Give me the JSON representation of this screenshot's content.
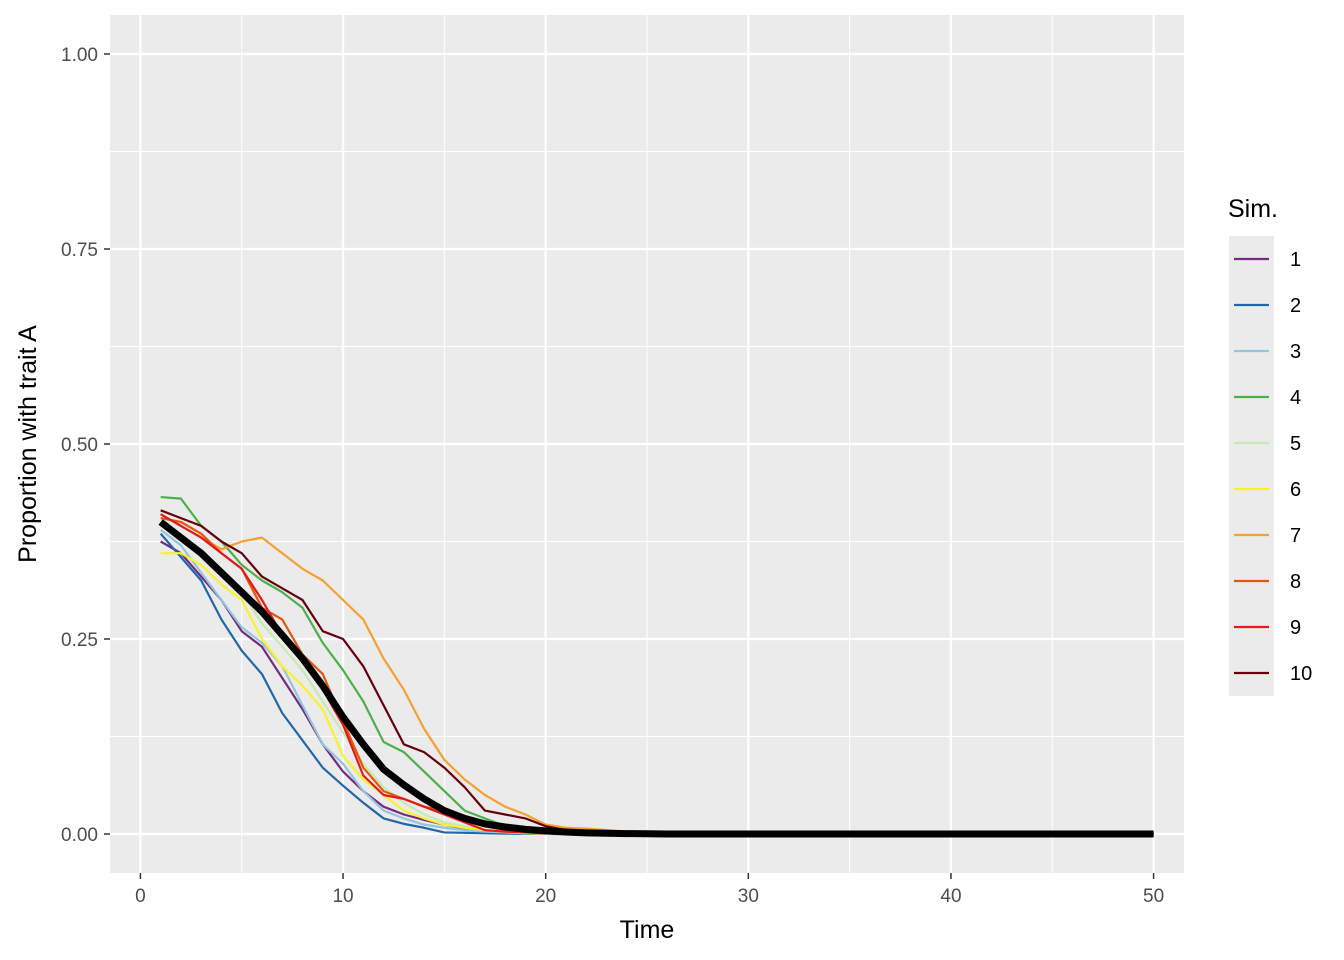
{
  "chart_data": {
    "type": "line",
    "xlabel": "Time",
    "ylabel": "Proportion with trait A",
    "xlim": [
      -1.5,
      51.5
    ],
    "ylim": [
      -0.05,
      1.05
    ],
    "x_ticks": [
      0,
      10,
      20,
      30,
      40,
      50
    ],
    "x_tick_labels": [
      "0",
      "10",
      "20",
      "30",
      "40",
      "50"
    ],
    "y_ticks": [
      0,
      0.25,
      0.5,
      0.75,
      1.0
    ],
    "y_tick_labels": [
      "0.00",
      "0.25",
      "0.50",
      "0.75",
      "1.00"
    ],
    "grid": true,
    "background": "#ebebeb",
    "legend": {
      "title": "Sim.",
      "position": "right"
    },
    "series": [
      {
        "name": "1",
        "color": "#762a83",
        "y": [
          0.375,
          0.36,
          0.33,
          0.3,
          0.26,
          0.24,
          0.2,
          0.16,
          0.115,
          0.08,
          0.055,
          0.035,
          0.025,
          0.018,
          0.012,
          0.007,
          0.004,
          0.002,
          0.001,
          0.0005
        ]
      },
      {
        "name": "2",
        "color": "#2166ac",
        "y": [
          0.385,
          0.355,
          0.325,
          0.275,
          0.235,
          0.205,
          0.155,
          0.12,
          0.085,
          0.062,
          0.04,
          0.02,
          0.013,
          0.008,
          0.002,
          0.0015,
          0.001,
          0.0005,
          0.0002,
          0.0001
        ]
      },
      {
        "name": "3",
        "color": "#92c5de",
        "y": [
          0.39,
          0.37,
          0.335,
          0.3,
          0.265,
          0.245,
          0.215,
          0.165,
          0.115,
          0.09,
          0.055,
          0.03,
          0.02,
          0.012,
          0.008,
          0.005,
          0.003,
          0.002,
          0.001,
          0.0005
        ]
      },
      {
        "name": "4",
        "color": "#4daf4a",
        "y": [
          0.432,
          0.43,
          0.395,
          0.375,
          0.345,
          0.325,
          0.31,
          0.29,
          0.245,
          0.21,
          0.17,
          0.118,
          0.105,
          0.08,
          0.055,
          0.03,
          0.02,
          0.01,
          0.005,
          0.002
        ]
      },
      {
        "name": "5",
        "color": "#c7e9b4",
        "y": [
          0.4,
          0.38,
          0.355,
          0.33,
          0.31,
          0.27,
          0.24,
          0.21,
          0.17,
          0.13,
          0.09,
          0.06,
          0.04,
          0.025,
          0.015,
          0.01,
          0.005,
          0.003,
          0.001,
          0.0005
        ]
      },
      {
        "name": "6",
        "color": "#f7f32a",
        "y": [
          0.36,
          0.36,
          0.345,
          0.32,
          0.3,
          0.25,
          0.215,
          0.19,
          0.16,
          0.1,
          0.07,
          0.05,
          0.03,
          0.02,
          0.012,
          0.008,
          0.005,
          0.003,
          0.001,
          0.0005
        ]
      },
      {
        "name": "7",
        "color": "#f5a030",
        "y": [
          0.41,
          0.395,
          0.38,
          0.365,
          0.375,
          0.38,
          0.36,
          0.34,
          0.325,
          0.3,
          0.275,
          0.225,
          0.185,
          0.135,
          0.095,
          0.07,
          0.05,
          0.035,
          0.025,
          0.012,
          0.008,
          0.007,
          0.005,
          0.003,
          0.001
        ]
      },
      {
        "name": "8",
        "color": "#e6550d",
        "y": [
          0.405,
          0.4,
          0.385,
          0.36,
          0.34,
          0.29,
          0.275,
          0.23,
          0.205,
          0.145,
          0.085,
          0.055,
          0.045,
          0.035,
          0.03,
          0.02,
          0.01,
          0.005,
          0.002,
          0.001
        ]
      },
      {
        "name": "9",
        "color": "#e31a1c",
        "y": [
          0.41,
          0.395,
          0.38,
          0.36,
          0.34,
          0.3,
          0.255,
          0.22,
          0.185,
          0.14,
          0.075,
          0.05,
          0.045,
          0.035,
          0.025,
          0.015,
          0.005,
          0.003,
          0.002,
          0.001
        ]
      },
      {
        "name": "10",
        "color": "#67000d",
        "y": [
          0.415,
          0.405,
          0.395,
          0.375,
          0.36,
          0.33,
          0.315,
          0.3,
          0.26,
          0.25,
          0.215,
          0.165,
          0.115,
          0.105,
          0.085,
          0.06,
          0.03,
          0.025,
          0.02,
          0.01,
          0.005,
          0.002,
          0.001,
          0.0005,
          0.0002
        ]
      }
    ],
    "mean_line": {
      "color": "#000000",
      "y": [
        0.4,
        0.38,
        0.36,
        0.335,
        0.31,
        0.285,
        0.255,
        0.225,
        0.19,
        0.15,
        0.115,
        0.083,
        0.063,
        0.045,
        0.03,
        0.02,
        0.013,
        0.009,
        0.006,
        0.004,
        0.0025,
        0.0015,
        0.001,
        0.0005,
        0.0003
      ]
    }
  }
}
